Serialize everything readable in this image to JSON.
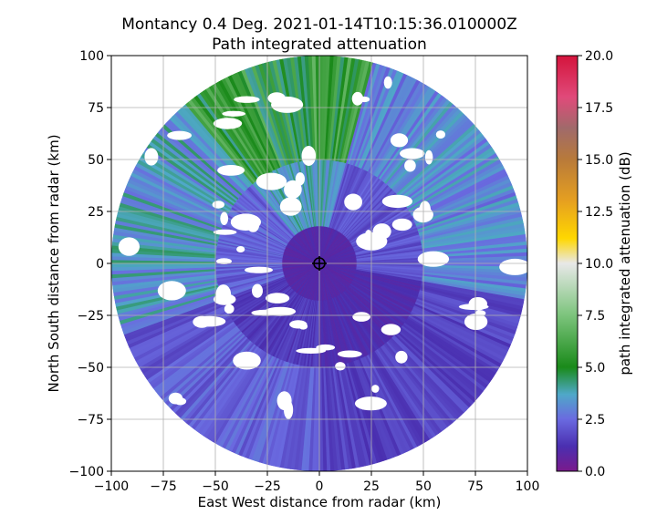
{
  "chart_data": {
    "type": "heatmap",
    "title_line1": "Montancy 0.4 Deg. 2021-01-14T10:15:36.010000Z",
    "title_line2": "Path integrated attenuation",
    "xlabel": "East West distance from radar (km)",
    "ylabel": "North South distance from radar (km)",
    "xlim": [
      -100,
      100
    ],
    "ylim": [
      -100,
      100
    ],
    "xticks": [
      -100,
      -75,
      -50,
      -25,
      0,
      25,
      50,
      75,
      100
    ],
    "yticks": [
      -100,
      -75,
      -50,
      -25,
      0,
      25,
      50,
      75,
      100
    ],
    "grid": true,
    "radar_range_km": 100,
    "colorbar": {
      "label": "path integrated attenuation (dB)",
      "range": [
        0.0,
        20.0
      ],
      "ticks": [
        "0.0",
        "2.5",
        "5.0",
        "7.5",
        "10.0",
        "12.5",
        "15.0",
        "17.5",
        "20.0"
      ],
      "stops": [
        {
          "value": 0.0,
          "color": "#7a1a8c"
        },
        {
          "value": 1.2,
          "color": "#4a2fb0"
        },
        {
          "value": 2.5,
          "color": "#6a6ae0"
        },
        {
          "value": 3.7,
          "color": "#4fa8c8"
        },
        {
          "value": 5.0,
          "color": "#1a8a1a"
        },
        {
          "value": 7.5,
          "color": "#7cc47c"
        },
        {
          "value": 10.0,
          "color": "#e8e8e8"
        },
        {
          "value": 11.2,
          "color": "#ffd700"
        },
        {
          "value": 13.0,
          "color": "#e6a020"
        },
        {
          "value": 15.0,
          "color": "#b87a3a"
        },
        {
          "value": 16.5,
          "color": "#a06a6a"
        },
        {
          "value": 18.0,
          "color": "#e04a7a"
        },
        {
          "value": 20.0,
          "color": "#d4143c"
        }
      ]
    },
    "sectors": [
      {
        "from_deg": -40,
        "to_deg": 15,
        "value": 5.0,
        "note": "north / north-west sector (green)"
      },
      {
        "from_deg": 15,
        "to_deg": 100,
        "value": 2.8
      },
      {
        "from_deg": 100,
        "to_deg": 180,
        "value": 1.5
      },
      {
        "from_deg": 180,
        "to_deg": 250,
        "value": 2.0
      },
      {
        "from_deg": 250,
        "to_deg": 320,
        "value": 3.2
      }
    ]
  }
}
